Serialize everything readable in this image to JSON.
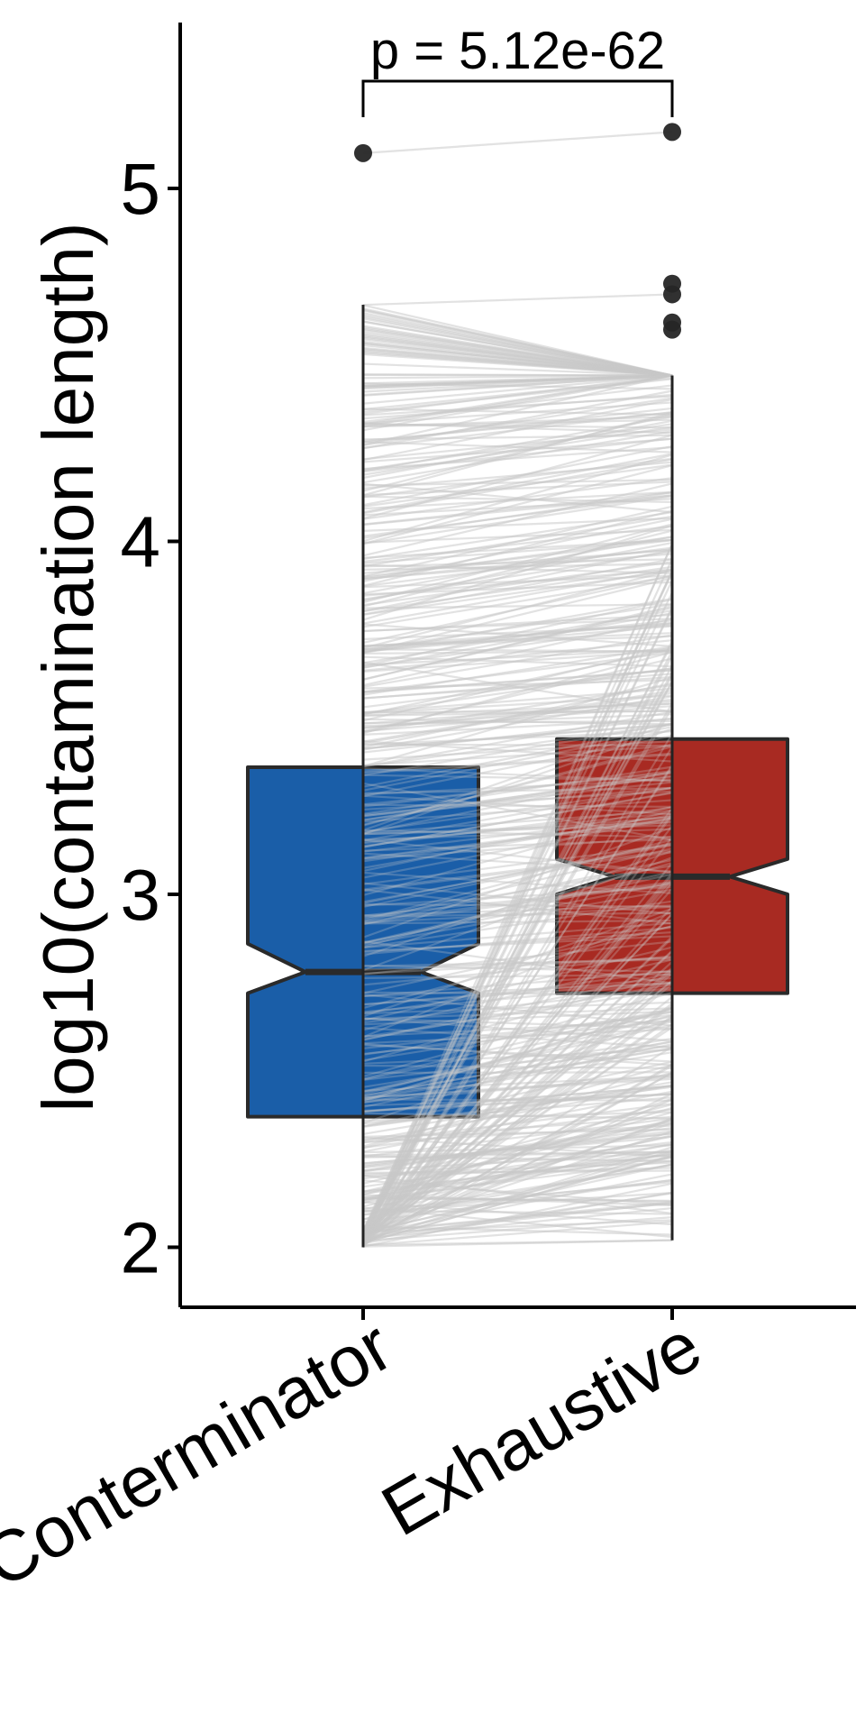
{
  "chart_data": {
    "type": "box",
    "title": "",
    "ylabel": "log10(contamination length)",
    "xlabel": "",
    "ylim": [
      1.83,
      5.47
    ],
    "yticks": [
      2,
      3,
      4,
      5
    ],
    "ytick_labels": [
      "2",
      "3",
      "4",
      "5"
    ],
    "categories": [
      "Conterminator",
      "Exhaustive"
    ],
    "grid": false,
    "legend": "none",
    "notched": true,
    "paired_lines": true,
    "boxes": [
      {
        "name": "Conterminator",
        "color": "#1a5ea8",
        "whisker_low": 2.0,
        "q1": 2.37,
        "median": 2.78,
        "q3": 3.36,
        "whisker_high": 4.67,
        "notch_low": 2.72,
        "notch_high": 2.86,
        "outliers": [
          5.1
        ]
      },
      {
        "name": "Exhaustive",
        "color": "#a82a22",
        "whisker_low": 2.02,
        "q1": 2.72,
        "median": 3.05,
        "q3": 3.44,
        "whisker_high": 4.47,
        "notch_low": 3.0,
        "notch_high": 3.1,
        "outliers": [
          5.16,
          4.73,
          4.7,
          4.62,
          4.6
        ]
      }
    ],
    "annotation": {
      "text": "p = 5.12e-62"
    }
  }
}
